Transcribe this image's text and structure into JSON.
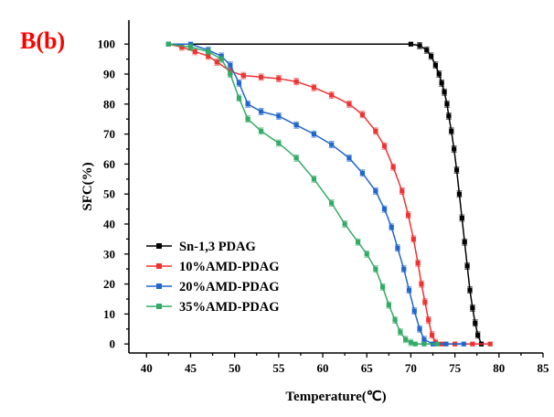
{
  "panel_label": "B(b)",
  "chart_data": {
    "type": "line",
    "xlabel": "Temperature(℃)",
    "ylabel": "SFC(%)",
    "xlim": [
      38,
      85
    ],
    "ylim": [
      -3,
      108
    ],
    "xticks": [
      40,
      45,
      50,
      55,
      60,
      65,
      70,
      75,
      80,
      85
    ],
    "yticks": [
      0,
      10,
      20,
      30,
      40,
      50,
      60,
      70,
      80,
      90,
      100
    ],
    "grid": false,
    "error_bars": true,
    "legend_position": "bottom-left",
    "series": [
      {
        "name": "Sn-1,3 PDAG",
        "color": "#000000",
        "x": [
          42.5,
          70.0,
          71.0,
          71.8,
          72.3,
          72.8,
          73.2,
          73.5,
          73.8,
          74.1,
          74.3,
          74.6,
          74.9,
          75.2,
          75.5,
          75.8,
          76.1,
          76.4,
          76.7,
          77.0,
          77.3,
          77.6,
          78.0
        ],
        "y": [
          100,
          100,
          99.5,
          98,
          96,
          93,
          90,
          87,
          84,
          80,
          76,
          71,
          65,
          58,
          50,
          42,
          34,
          26,
          18,
          12,
          7,
          3,
          0
        ]
      },
      {
        "name": "10%AMD-PDAG",
        "color": "#ee3333",
        "x": [
          42.5,
          44,
          45.5,
          47,
          48,
          49.5,
          51,
          53,
          55,
          57,
          59,
          61,
          63,
          64.5,
          66,
          67,
          68,
          69,
          69.7,
          70.3,
          70.8,
          71.2,
          71.6,
          72.0,
          72.4,
          72.8,
          73.5,
          75,
          77,
          79
        ],
        "y": [
          100,
          99,
          97.5,
          96,
          94,
          91,
          89.5,
          89,
          88.5,
          87.5,
          85.5,
          83,
          80,
          76.5,
          71,
          66,
          59,
          51,
          43,
          35,
          27,
          20,
          14,
          8,
          3,
          0.5,
          0,
          0,
          0,
          0
        ]
      },
      {
        "name": "20%AMD-PDAG",
        "color": "#2266cc",
        "x": [
          42.5,
          45,
          47,
          48.5,
          49.5,
          50.5,
          51.5,
          53,
          55,
          57,
          59,
          61,
          63,
          64.5,
          66,
          67,
          67.8,
          68.5,
          69.2,
          69.8,
          70.4,
          71.0,
          71.5,
          72.5,
          74,
          76
        ],
        "y": [
          100,
          100,
          98,
          96,
          93,
          87,
          80,
          77.5,
          76,
          73,
          70,
          66.5,
          62,
          57,
          51,
          45,
          39,
          32,
          25,
          18,
          11,
          5,
          1.5,
          0,
          0,
          0
        ]
      },
      {
        "name": "35%AMD-PDAG",
        "color": "#33aa66",
        "x": [
          42.5,
          45,
          47,
          48.5,
          49.5,
          50.5,
          51.5,
          53,
          55,
          57,
          59,
          61,
          62.5,
          64,
          65,
          66,
          66.8,
          67.5,
          68.2,
          68.8,
          69.4,
          70.0,
          70.5,
          71.5,
          73
        ],
        "y": [
          100,
          99,
          97.5,
          95,
          90,
          82,
          75,
          71,
          67,
          62,
          55,
          47,
          40,
          34,
          30,
          25,
          19,
          13,
          8,
          4,
          1.5,
          0.5,
          0,
          0,
          0
        ]
      }
    ]
  }
}
